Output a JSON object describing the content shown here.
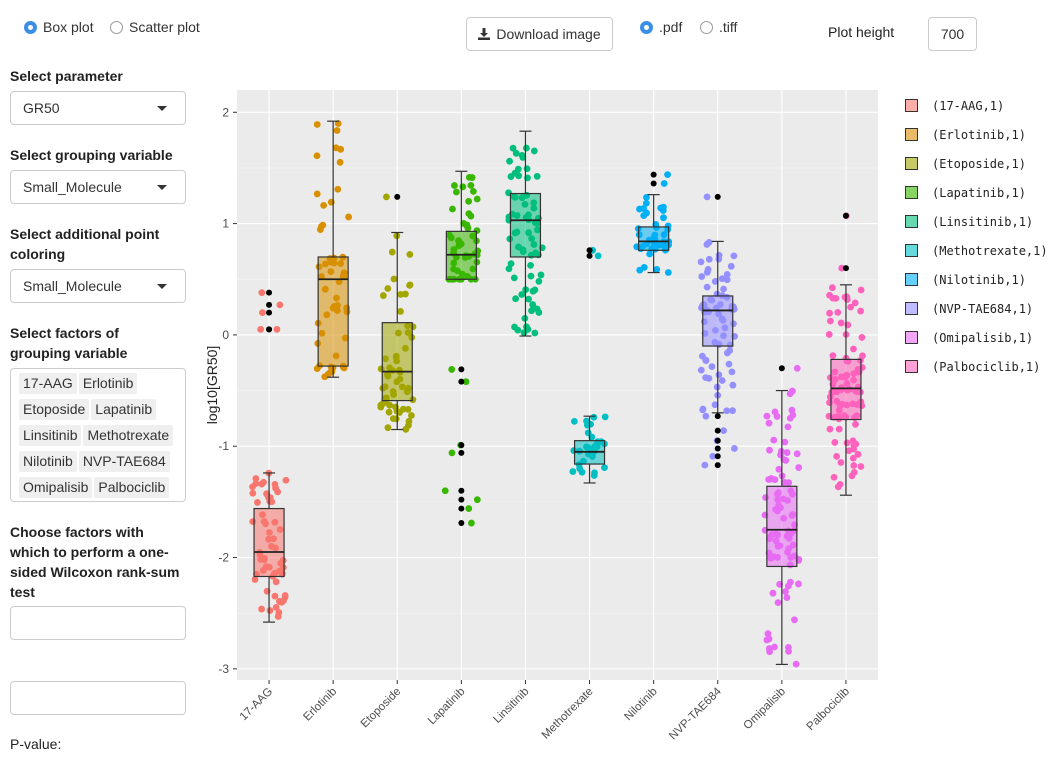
{
  "plot_type": {
    "options": [
      {
        "label": "Box plot",
        "selected": true
      },
      {
        "label": "Scatter plot",
        "selected": false
      }
    ]
  },
  "download": {
    "label": "Download image",
    "icon": "download-icon"
  },
  "format": {
    "options": [
      {
        "label": ".pdf",
        "selected": true
      },
      {
        "label": ".tiff",
        "selected": false
      }
    ]
  },
  "plot_height": {
    "label": "Plot height",
    "value": "700"
  },
  "sidebar": {
    "parameter": {
      "label": "Select parameter",
      "value": "GR50"
    },
    "grouping": {
      "label": "Select grouping variable",
      "value": "Small_Molecule"
    },
    "coloring": {
      "label": "Select additional point coloring",
      "value": "Small_Molecule"
    },
    "factors": {
      "label": "Select factors of grouping variable",
      "tags": [
        "17-AAG",
        "Erlotinib",
        "Etoposide",
        "Lapatinib",
        "Linsitinib",
        "Methotrexate",
        "Nilotinib",
        "NVP-TAE684",
        "Omipalisib",
        "Palbociclib"
      ]
    },
    "wilcoxon": {
      "label": "Choose factors with which to perform a one-sided Wilcoxon rank-sum test",
      "value1": "",
      "value2": ""
    },
    "pvalue_label": "P-value:"
  },
  "chart_data": {
    "type": "box",
    "ylabel": "log10[GR50]",
    "xlabel": "",
    "ylim": [
      -3.1,
      2.2
    ],
    "yticks": [
      -3,
      -2,
      -1,
      0,
      1,
      2
    ],
    "categories": [
      "17-AAG",
      "Erlotinib",
      "Etoposide",
      "Lapatinib",
      "Linsitinib",
      "Methotrexate",
      "Nilotinib",
      "NVP-TAE684",
      "Omipalisib",
      "Palbociclib"
    ],
    "boxes": [
      {
        "name": "17-AAG",
        "whisker_low": -2.58,
        "q1": -2.17,
        "median": -1.95,
        "q3": -1.56,
        "whisker_high": -1.24,
        "outliers": [
          0.05,
          0.05,
          0.2,
          0.27,
          0.38
        ],
        "n": 60
      },
      {
        "name": "Erlotinib",
        "whisker_low": -0.38,
        "q1": -0.28,
        "median": 0.5,
        "q3": 0.7,
        "whisker_high": 1.92,
        "outliers": [],
        "n": 55
      },
      {
        "name": "Etoposide",
        "whisker_low": -0.85,
        "q1": -0.59,
        "median": -0.33,
        "q3": 0.11,
        "whisker_high": 0.92,
        "outliers": [
          1.24
        ],
        "n": 60
      },
      {
        "name": "Lapatinib",
        "whisker_low": 0.5,
        "q1": 0.5,
        "median": 0.72,
        "q3": 0.93,
        "whisker_high": 1.47,
        "outliers": [
          -0.31,
          -0.42,
          -0.99,
          -1.06,
          -1.4,
          -1.48,
          -1.56,
          -1.69
        ],
        "n": 50
      },
      {
        "name": "Linsitinib",
        "whisker_low": -0.01,
        "q1": 0.7,
        "median": 1.03,
        "q3": 1.27,
        "whisker_high": 1.83,
        "outliers": [],
        "n": 70
      },
      {
        "name": "Methotrexate",
        "whisker_low": -1.33,
        "q1": -1.16,
        "median": -1.05,
        "q3": -0.95,
        "whisker_high": -0.73,
        "outliers": [
          0.71,
          0.76
        ],
        "n": 30
      },
      {
        "name": "Nilotinib",
        "whisker_low": 0.56,
        "q1": 0.76,
        "median": 0.84,
        "q3": 0.97,
        "whisker_high": 1.26,
        "outliers": [
          1.44,
          1.36
        ],
        "n": 45
      },
      {
        "name": "NVP-TAE684",
        "whisker_low": -0.7,
        "q1": -0.1,
        "median": 0.22,
        "q3": 0.35,
        "whisker_high": 0.84,
        "outliers": [
          1.24,
          -0.73,
          -0.86,
          -0.95,
          -1.02,
          -1.09,
          -1.17
        ],
        "n": 70
      },
      {
        "name": "Omipalisib",
        "whisker_low": -2.96,
        "q1": -2.08,
        "median": -1.75,
        "q3": -1.36,
        "whisker_high": -0.5,
        "outliers": [
          -0.3
        ],
        "n": 90
      },
      {
        "name": "Palbociclib",
        "whisker_low": -1.44,
        "q1": -0.76,
        "median": -0.48,
        "q3": -0.22,
        "whisker_high": 0.45,
        "outliers": [
          0.6,
          1.07
        ],
        "n": 90
      }
    ],
    "colors": [
      "#F8766D",
      "#D89000",
      "#A3A500",
      "#39B600",
      "#00BF7D",
      "#00BFC4",
      "#00B0F6",
      "#9590FF",
      "#E76BF3",
      "#FF62BC"
    ],
    "legend": {
      "position": "right",
      "entries": [
        "(17-AAG,1)",
        "(Erlotinib,1)",
        "(Etoposide,1)",
        "(Lapatinib,1)",
        "(Linsitinib,1)",
        "(Methotrexate,1)",
        "(Nilotinib,1)",
        "(NVP-TAE684,1)",
        "(Omipalisib,1)",
        "(Palbociclib,1)"
      ]
    },
    "grid": true
  }
}
